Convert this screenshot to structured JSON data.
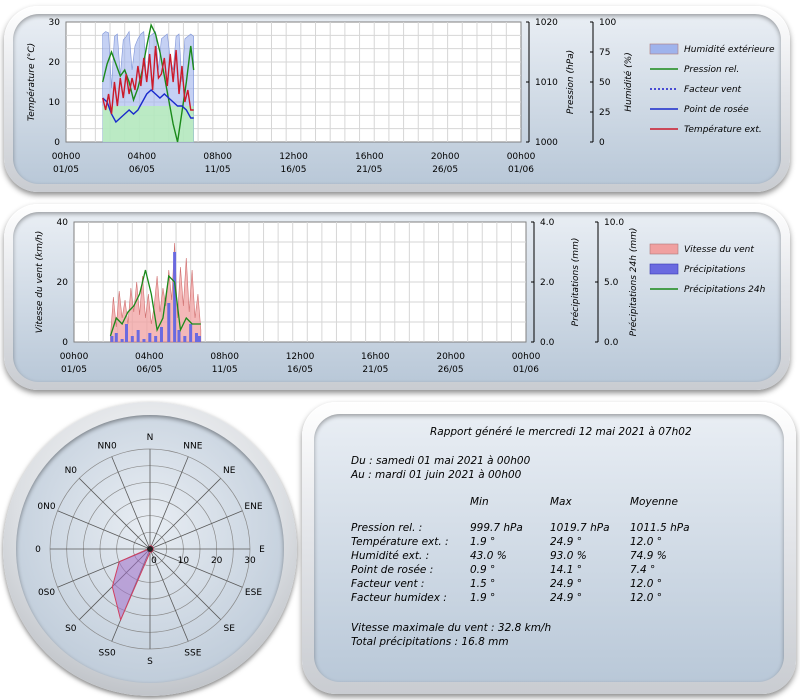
{
  "chart_data": [
    {
      "type": "line",
      "x_ticks": [
        [
          "00h00",
          "01/05"
        ],
        [
          "04h00",
          "06/05"
        ],
        [
          "08h00",
          "11/05"
        ],
        [
          "12h00",
          "16/05"
        ],
        [
          "16h00",
          "21/05"
        ],
        [
          "20h00",
          "26/05"
        ],
        [
          "00h00",
          "01/06"
        ]
      ],
      "y_left": {
        "label": "Température (°C)",
        "range": [
          0,
          30
        ],
        "ticks": [
          "0",
          "10",
          "20",
          "30"
        ]
      },
      "y_right1": {
        "label": "Pression (hPa)",
        "range": [
          1000,
          1020
        ],
        "ticks": [
          "1000",
          "1010",
          "1020"
        ]
      },
      "y_right2": {
        "label": "Humidité (%)",
        "range": [
          0,
          100
        ],
        "ticks": [
          "0",
          "25",
          "50",
          "75",
          "100"
        ]
      },
      "grid": true,
      "legend_position": "right",
      "series": [
        {
          "name": "Humidité extérieure",
          "kind": "area",
          "color": "#9fb3ec",
          "x_days": [
            2.5,
            2.7,
            2.9,
            3.1,
            3.3,
            3.5,
            3.7,
            3.9,
            4.1,
            4.3,
            4.5,
            4.7,
            4.9,
            5.1,
            5.3,
            5.5,
            5.7,
            5.9,
            6.1,
            6.3,
            6.5,
            6.7,
            6.9,
            7.1,
            7.3,
            7.5,
            7.7,
            7.9,
            8.1,
            8.3,
            8.5,
            8.7
          ],
          "values": [
            90,
            92,
            91,
            45,
            88,
            90,
            55,
            85,
            88,
            92,
            60,
            80,
            86,
            90,
            92,
            50,
            88,
            90,
            92,
            60,
            86,
            88,
            90,
            70,
            60,
            88,
            90,
            50,
            86,
            88,
            90,
            88
          ]
        },
        {
          "name": "Pression rel.",
          "kind": "line",
          "color": "#1a8a1a",
          "x_days": [
            2.5,
            2.8,
            3.1,
            3.4,
            3.7,
            4.0,
            4.3,
            4.6,
            4.9,
            5.2,
            5.5,
            5.8,
            6.1,
            6.4,
            6.7,
            7.0,
            7.3,
            7.6,
            7.9,
            8.2,
            8.5,
            8.7
          ],
          "values": [
            1010,
            1013,
            1015,
            1013,
            1011,
            1012,
            1010,
            1007,
            1009,
            1012,
            1016,
            1019.5,
            1018,
            1015,
            1011,
            1007,
            1003,
            1000,
            1005,
            1010,
            1016,
            1012
          ]
        },
        {
          "name": "Facteur vent",
          "kind": "dotted",
          "color": "#1a1acc",
          "x_days": [],
          "values": []
        },
        {
          "name": "Point de rosée",
          "kind": "line",
          "color": "#1a2acc",
          "x_days": [
            2.5,
            2.8,
            3.1,
            3.4,
            3.7,
            4.0,
            4.3,
            4.6,
            4.9,
            5.2,
            5.5,
            5.8,
            6.1,
            6.4,
            6.7,
            7.0,
            7.3,
            7.6,
            7.9,
            8.2,
            8.5,
            8.7
          ],
          "values": [
            11,
            10,
            7,
            5,
            6,
            7,
            8,
            7,
            8,
            10,
            12,
            13,
            12,
            11,
            12,
            11,
            10,
            9,
            9,
            8,
            6,
            6
          ]
        },
        {
          "name": "Température ext.",
          "kind": "line",
          "color": "#cc1a2a",
          "x_days": [
            2.5,
            2.7,
            2.9,
            3.1,
            3.3,
            3.5,
            3.7,
            3.9,
            4.1,
            4.3,
            4.5,
            4.7,
            4.9,
            5.1,
            5.3,
            5.5,
            5.7,
            5.9,
            6.1,
            6.3,
            6.5,
            6.7,
            6.9,
            7.1,
            7.3,
            7.5,
            7.7,
            7.9,
            8.1,
            8.3,
            8.5,
            8.7
          ],
          "values": [
            11,
            8,
            12,
            7,
            15,
            9,
            16,
            11,
            17,
            12,
            16,
            13,
            19,
            14,
            21,
            15,
            22,
            13,
            24,
            16,
            17,
            21,
            14,
            22,
            15,
            23,
            12,
            19,
            10,
            13,
            8,
            8
          ]
        }
      ]
    },
    {
      "type": "bar",
      "x_ticks": [
        [
          "00h00",
          "01/05"
        ],
        [
          "04h00",
          "06/05"
        ],
        [
          "08h00",
          "11/05"
        ],
        [
          "12h00",
          "16/05"
        ],
        [
          "16h00",
          "21/05"
        ],
        [
          "20h00",
          "26/05"
        ],
        [
          "00h00",
          "01/06"
        ]
      ],
      "y_left": {
        "label": "Vitesse du vent (km/h)",
        "range": [
          0,
          40
        ],
        "ticks": [
          "0",
          "20",
          "40"
        ]
      },
      "y_right1": {
        "label": "Précipitations (mm)",
        "range": [
          0,
          4
        ],
        "ticks": [
          "0.0",
          "2.0",
          "4.0"
        ]
      },
      "y_right2": {
        "label": "Précipitations 24h (mm)",
        "range": [
          0,
          10
        ],
        "ticks": [
          "0.0",
          "5.0",
          "10.0"
        ]
      },
      "grid": true,
      "legend_position": "right",
      "series": [
        {
          "name": "Vitesse du vent",
          "kind": "area",
          "color": "#f0a0a0",
          "x_days": [
            2.5,
            2.7,
            2.9,
            3.1,
            3.3,
            3.5,
            3.7,
            3.9,
            4.1,
            4.3,
            4.5,
            4.7,
            4.9,
            5.1,
            5.3,
            5.5,
            5.7,
            5.9,
            6.1,
            6.3,
            6.5,
            6.7,
            6.9,
            7.1,
            7.3,
            7.5,
            7.7,
            7.9,
            8.1,
            8.3,
            8.5,
            8.7
          ],
          "values": [
            2,
            15,
            5,
            17,
            8,
            14,
            6,
            18,
            10,
            20,
            9,
            22,
            8,
            16,
            6,
            12,
            22,
            10,
            18,
            12,
            24,
            14,
            33,
            8,
            25,
            12,
            28,
            10,
            24,
            8,
            16,
            4
          ]
        },
        {
          "name": "Précipitations",
          "kind": "bars",
          "color": "#6a6ae0",
          "x_days": [
            2.6,
            2.9,
            3.3,
            3.6,
            4.0,
            4.4,
            4.8,
            5.2,
            5.6,
            6.0,
            6.5,
            6.9,
            7.2,
            7.6,
            8.0,
            8.4,
            8.6
          ],
          "values": [
            0.2,
            0.3,
            0.1,
            0.6,
            0.2,
            0.4,
            0.1,
            0.3,
            0.2,
            0.5,
            1.3,
            3.0,
            0.4,
            0.2,
            0.6,
            0.3,
            0.2
          ]
        },
        {
          "name": "Précipitations 24h",
          "kind": "line",
          "color": "#1a8a1a",
          "x_days": [
            2.5,
            2.9,
            3.3,
            3.7,
            4.1,
            4.5,
            4.9,
            5.3,
            5.7,
            6.1,
            6.5,
            6.9,
            7.3,
            7.7,
            8.1,
            8.4,
            8.7
          ],
          "values": [
            0.5,
            2,
            1.5,
            2.5,
            3,
            4,
            6,
            4,
            1,
            2,
            5.5,
            5,
            1,
            2,
            1.5,
            1.5,
            1.5
          ]
        }
      ]
    },
    {
      "type": "radar",
      "directions": [
        "N",
        "NNE",
        "NE",
        "ENE",
        "E",
        "ESE",
        "SE",
        "SSE",
        "S",
        "SS0",
        "S0",
        "0S0",
        "0",
        "0N0",
        "N0",
        "NN0"
      ],
      "ring_ticks": [
        "0",
        "10",
        "20",
        "30"
      ],
      "range": [
        0,
        30
      ],
      "series": [
        {
          "name": "Vitesse du vent",
          "color": "#e06a8a",
          "values": [
            1,
            1,
            1,
            1,
            1,
            1,
            1,
            1,
            1,
            23,
            16,
            10,
            0.5,
            0.5,
            0.5,
            0.5
          ]
        }
      ]
    }
  ],
  "legend1": [
    "Humidité extérieure",
    "Pression rel.",
    "Facteur vent",
    "Point de rosée",
    "Température ext."
  ],
  "legend2": [
    "Vitesse du vent",
    "Précipitations",
    "Précipitations 24h"
  ],
  "report": {
    "title": "Rapport généré le mercredi 12 mai 2021 à 07h02",
    "from": "Du : samedi 01 mai 2021 à 00h00",
    "to": "Au : mardi 01 juin 2021 à 00h00",
    "headers": [
      "Min",
      "Max",
      "Moyenne"
    ],
    "rows": [
      {
        "label": "Pression rel. :",
        "min": "999.7 hPa",
        "max": "1019.7 hPa",
        "avg": "1011.5 hPa"
      },
      {
        "label": "Température ext. :",
        "min": "1.9 °",
        "max": "24.9 °",
        "avg": "12.0 °"
      },
      {
        "label": "Humidité ext. :",
        "min": "43.0 %",
        "max": "93.0 %",
        "avg": "74.9 %"
      },
      {
        "label": "Point de rosée :",
        "min": "0.9 °",
        "max": "14.1 °",
        "avg": "7.4 °"
      },
      {
        "label": "Facteur vent :",
        "min": "1.5 °",
        "max": "24.9 °",
        "avg": "12.0 °"
      },
      {
        "label": "Facteur humidex :",
        "min": "1.9 °",
        "max": "24.9 °",
        "avg": "12.0 °"
      }
    ],
    "max_wind": "Vitesse maximale du vent : 32.8 km/h",
    "total_rain": "Total précipitations : 16.8 mm"
  }
}
